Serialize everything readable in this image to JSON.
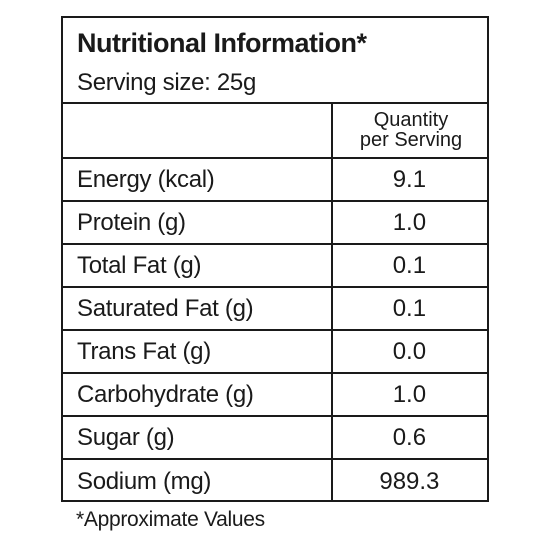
{
  "label": {
    "title": "Nutritional Information*",
    "serving_size": "Serving size: 25g",
    "column_header_line1": "Quantity",
    "column_header_line2": "per Serving",
    "rows": [
      {
        "nutrient": "Energy (kcal)",
        "value": "9.1"
      },
      {
        "nutrient": "Protein (g)",
        "value": "1.0"
      },
      {
        "nutrient": "Total Fat (g)",
        "value": "0.1"
      },
      {
        "nutrient": "Saturated Fat (g)",
        "value": "0.1"
      },
      {
        "nutrient": "Trans Fat (g)",
        "value": "0.0"
      },
      {
        "nutrient": "Carbohydrate (g)",
        "value": "1.0"
      },
      {
        "nutrient": "Sugar (g)",
        "value": "0.6"
      },
      {
        "nutrient": "Sodium (mg)",
        "value": "989.3"
      }
    ],
    "footnote": "*Approximate Values"
  }
}
